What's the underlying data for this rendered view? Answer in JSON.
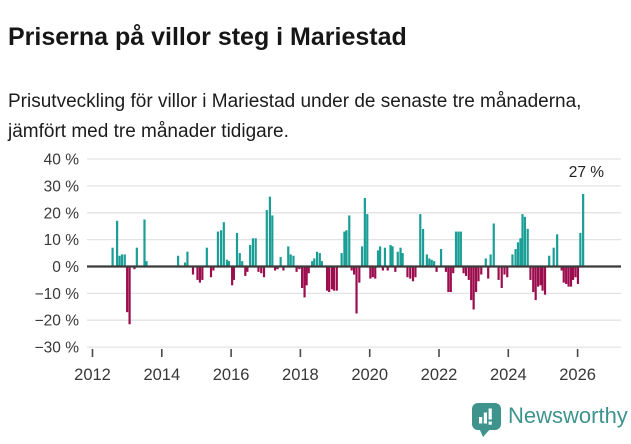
{
  "header": {
    "title": "Priserna på villor steg i Mariestad",
    "subtitle": "Prisutveckling för villor i Mariestad under de senaste tre månaderna, jämfört med tre månader tidigare."
  },
  "chart_data": {
    "type": "bar",
    "title": "Priserna på villor steg i Mariestad",
    "unit": "%",
    "xlabel": "",
    "ylabel": "%",
    "ylim": [
      -30,
      40
    ],
    "xlim": [
      2011.84,
      2027.25
    ],
    "grid": true,
    "annotation": {
      "label": "27 %",
      "x": 2026.16,
      "y": 27
    },
    "colors": {
      "positive": "#1a9e96",
      "negative": "#9c0d4e",
      "zero_line": "#3b3b3b",
      "gridline": "#e3e3e3",
      "tick_text": "#383838"
    },
    "y_ticks": [
      {
        "label": "40 %",
        "value": 40
      },
      {
        "label": "30 %",
        "value": 30
      },
      {
        "label": "20 %",
        "value": 20
      },
      {
        "label": "10 %",
        "value": 10
      },
      {
        "label": "0 %",
        "value": 0
      },
      {
        "label": "−10 %",
        "value": -10
      },
      {
        "label": "−20 %",
        "value": -20
      },
      {
        "label": "−30 %",
        "value": -30
      }
    ],
    "x_ticks": [
      {
        "label": "2012",
        "value": 2012
      },
      {
        "label": "2014",
        "value": 2014
      },
      {
        "label": "2016",
        "value": 2016
      },
      {
        "label": "2018",
        "value": 2018
      },
      {
        "label": "2020",
        "value": 2020
      },
      {
        "label": "2022",
        "value": 2022
      },
      {
        "label": "2024",
        "value": 2024
      },
      {
        "label": "2026",
        "value": 2026
      }
    ],
    "series": [
      [
        2012.58,
        7
      ],
      [
        2012.71,
        17
      ],
      [
        2012.78,
        4
      ],
      [
        2012.85,
        4.5
      ],
      [
        2012.93,
        4.5
      ],
      [
        2013.0,
        -17
      ],
      [
        2013.07,
        -21.5
      ],
      [
        2013.21,
        -1
      ],
      [
        2013.28,
        7
      ],
      [
        2013.5,
        17.5
      ],
      [
        2013.56,
        2
      ],
      [
        2014.47,
        4
      ],
      [
        2014.67,
        1.5
      ],
      [
        2014.74,
        5.5
      ],
      [
        2014.9,
        -3
      ],
      [
        2015.03,
        -5
      ],
      [
        2015.1,
        -6
      ],
      [
        2015.17,
        -5
      ],
      [
        2015.3,
        7
      ],
      [
        2015.42,
        -4
      ],
      [
        2015.49,
        -1.5
      ],
      [
        2015.62,
        13
      ],
      [
        2015.71,
        13.5
      ],
      [
        2015.79,
        16.5
      ],
      [
        2015.88,
        2.5
      ],
      [
        2015.94,
        2
      ],
      [
        2016.03,
        -7
      ],
      [
        2016.08,
        -5
      ],
      [
        2016.17,
        12.5
      ],
      [
        2016.25,
        5
      ],
      [
        2016.32,
        2
      ],
      [
        2016.41,
        -3.5
      ],
      [
        2016.47,
        -2
      ],
      [
        2016.55,
        8
      ],
      [
        2016.63,
        10.5
      ],
      [
        2016.71,
        10.5
      ],
      [
        2016.79,
        -2
      ],
      [
        2016.87,
        -2.5
      ],
      [
        2016.95,
        -4
      ],
      [
        2017.03,
        21
      ],
      [
        2017.12,
        26
      ],
      [
        2017.19,
        19
      ],
      [
        2017.27,
        -1.5
      ],
      [
        2017.34,
        -1
      ],
      [
        2017.43,
        3.5
      ],
      [
        2017.51,
        -1.5
      ],
      [
        2017.65,
        7.5
      ],
      [
        2017.72,
        4.5
      ],
      [
        2017.8,
        4
      ],
      [
        2017.89,
        -2
      ],
      [
        2017.97,
        -1
      ],
      [
        2018.05,
        -8
      ],
      [
        2018.12,
        -11.5
      ],
      [
        2018.18,
        -7
      ],
      [
        2018.24,
        -2.5
      ],
      [
        2018.34,
        2
      ],
      [
        2018.4,
        3
      ],
      [
        2018.48,
        5.5
      ],
      [
        2018.56,
        5
      ],
      [
        2018.62,
        2
      ],
      [
        2018.77,
        -9
      ],
      [
        2018.83,
        -9.5
      ],
      [
        2018.91,
        -8.5
      ],
      [
        2018.97,
        -9
      ],
      [
        2019.05,
        -9
      ],
      [
        2019.19,
        5
      ],
      [
        2019.27,
        13
      ],
      [
        2019.33,
        13.5
      ],
      [
        2019.41,
        19
      ],
      [
        2019.48,
        -1.5
      ],
      [
        2019.55,
        -3
      ],
      [
        2019.62,
        -17.5
      ],
      [
        2019.7,
        -6
      ],
      [
        2019.78,
        7.5
      ],
      [
        2019.86,
        25.5
      ],
      [
        2019.93,
        19.5
      ],
      [
        2020.02,
        -4.5
      ],
      [
        2020.09,
        -4
      ],
      [
        2020.16,
        -4.5
      ],
      [
        2020.24,
        6
      ],
      [
        2020.3,
        7.5
      ],
      [
        2020.38,
        -1.5
      ],
      [
        2020.44,
        7
      ],
      [
        2020.52,
        -1.5
      ],
      [
        2020.6,
        8
      ],
      [
        2020.66,
        7.5
      ],
      [
        2020.74,
        -2
      ],
      [
        2020.81,
        5.5
      ],
      [
        2020.89,
        7
      ],
      [
        2020.95,
        5
      ],
      [
        2021.09,
        -4
      ],
      [
        2021.17,
        -4.5
      ],
      [
        2021.25,
        -5.5
      ],
      [
        2021.32,
        -4
      ],
      [
        2021.46,
        19.5
      ],
      [
        2021.54,
        14
      ],
      [
        2021.65,
        4.5
      ],
      [
        2021.72,
        3
      ],
      [
        2021.79,
        2.5
      ],
      [
        2021.86,
        2
      ],
      [
        2021.93,
        -2
      ],
      [
        2022.06,
        6.5
      ],
      [
        2022.2,
        -2
      ],
      [
        2022.27,
        -9.5
      ],
      [
        2022.34,
        -9.5
      ],
      [
        2022.41,
        -2.5
      ],
      [
        2022.49,
        13
      ],
      [
        2022.56,
        13
      ],
      [
        2022.63,
        13
      ],
      [
        2022.71,
        -2.5
      ],
      [
        2022.78,
        -3.5
      ],
      [
        2022.86,
        -5
      ],
      [
        2022.93,
        -12.5
      ],
      [
        2023.0,
        -16
      ],
      [
        2023.07,
        -9.5
      ],
      [
        2023.14,
        -5.5
      ],
      [
        2023.22,
        -3
      ],
      [
        2023.35,
        3
      ],
      [
        2023.42,
        -4.5
      ],
      [
        2023.49,
        4.5
      ],
      [
        2023.58,
        16
      ],
      [
        2023.72,
        -5
      ],
      [
        2023.81,
        -8
      ],
      [
        2023.89,
        -3
      ],
      [
        2023.97,
        -4
      ],
      [
        2024.12,
        4.5
      ],
      [
        2024.21,
        6.5
      ],
      [
        2024.28,
        9
      ],
      [
        2024.35,
        10.5
      ],
      [
        2024.41,
        19.5
      ],
      [
        2024.48,
        18.5
      ],
      [
        2024.56,
        14
      ],
      [
        2024.64,
        -5
      ],
      [
        2024.72,
        -9.5
      ],
      [
        2024.79,
        -12.5
      ],
      [
        2024.86,
        -7.5
      ],
      [
        2024.93,
        -7
      ],
      [
        2024.99,
        -9
      ],
      [
        2025.06,
        -10.5
      ],
      [
        2025.18,
        4
      ],
      [
        2025.31,
        7
      ],
      [
        2025.41,
        12
      ],
      [
        2025.54,
        -1.5
      ],
      [
        2025.6,
        -6
      ],
      [
        2025.67,
        -6.5
      ],
      [
        2025.74,
        -7.5
      ],
      [
        2025.81,
        -7.5
      ],
      [
        2025.87,
        -5
      ],
      [
        2025.94,
        -4
      ],
      [
        2026.01,
        -6.5
      ],
      [
        2026.08,
        12.5
      ],
      [
        2026.16,
        27
      ]
    ]
  },
  "footer": {
    "brand": "Newsworthy",
    "brand_color": "#3e948d",
    "logo_icon": "bar-chart-speech-bubble"
  }
}
